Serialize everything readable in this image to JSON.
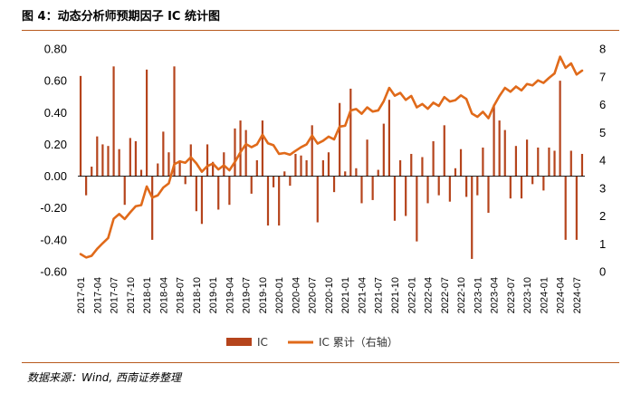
{
  "figure": {
    "title": "图 4：动态分析师预期因子 IC 统计图",
    "source": "数据来源：Wind, 西南证券整理"
  },
  "colors": {
    "bar": "#b5441c",
    "line": "#e06a1a",
    "rule": "#b85a1e"
  },
  "chart_data": {
    "type": "bar",
    "x": [
      "2017-01",
      "2017-02",
      "2017-03",
      "2017-04",
      "2017-05",
      "2017-06",
      "2017-07",
      "2017-08",
      "2017-09",
      "2017-10",
      "2017-11",
      "2017-12",
      "2018-01",
      "2018-02",
      "2018-03",
      "2018-04",
      "2018-05",
      "2018-06",
      "2018-07",
      "2018-08",
      "2018-09",
      "2018-10",
      "2018-11",
      "2018-12",
      "2019-01",
      "2019-02",
      "2019-03",
      "2019-04",
      "2019-05",
      "2019-06",
      "2019-07",
      "2019-08",
      "2019-09",
      "2019-10",
      "2019-11",
      "2019-12",
      "2020-01",
      "2020-02",
      "2020-03",
      "2020-04",
      "2020-05",
      "2020-06",
      "2020-07",
      "2020-08",
      "2020-09",
      "2020-10",
      "2020-11",
      "2020-12",
      "2021-01",
      "2021-02",
      "2021-03",
      "2021-04",
      "2021-05",
      "2021-06",
      "2021-07",
      "2021-08",
      "2021-09",
      "2021-10",
      "2021-11",
      "2021-12",
      "2022-01",
      "2022-02",
      "2022-03",
      "2022-04",
      "2022-05",
      "2022-06",
      "2022-07",
      "2022-08",
      "2022-09",
      "2022-10",
      "2022-11",
      "2022-12",
      "2023-01",
      "2023-02",
      "2023-03",
      "2023-04",
      "2023-05",
      "2023-06",
      "2023-07",
      "2023-08",
      "2023-09",
      "2023-10",
      "2023-11",
      "2023-12",
      "2024-01",
      "2024-02",
      "2024-03",
      "2024-04",
      "2024-05",
      "2024-06",
      "2024-07",
      "2024-08"
    ],
    "xtick_labels": [
      "2017-01",
      "2017-04",
      "2017-07",
      "2017-10",
      "2018-01",
      "2018-04",
      "2018-07",
      "2018-10",
      "2019-01",
      "2019-04",
      "2019-07",
      "2019-10",
      "2020-01",
      "2020-04",
      "2020-07",
      "2020-10",
      "2021-01",
      "2021-04",
      "2021-07",
      "2021-10",
      "2022-01",
      "2022-04",
      "2022-07",
      "2022-10",
      "2023-01",
      "2023-04",
      "2023-07",
      "2023-10",
      "2024-01",
      "2024-04",
      "2024-07"
    ],
    "series": [
      {
        "name": "IC",
        "type": "bar",
        "axis": "left",
        "values": [
          0.63,
          -0.12,
          0.06,
          0.25,
          0.2,
          0.19,
          0.69,
          0.17,
          -0.18,
          0.24,
          0.22,
          0.04,
          0.67,
          -0.4,
          0.08,
          0.28,
          0.15,
          0.69,
          0.1,
          -0.05,
          0.2,
          -0.22,
          -0.3,
          0.2,
          0.09,
          -0.21,
          0.15,
          -0.18,
          0.3,
          0.35,
          0.29,
          -0.11,
          0.1,
          0.35,
          -0.31,
          -0.07,
          -0.31,
          0.03,
          -0.06,
          0.14,
          0.13,
          0.1,
          0.32,
          -0.29,
          0.1,
          0.15,
          -0.1,
          0.46,
          0.03,
          0.55,
          0.05,
          -0.17,
          0.23,
          -0.15,
          0.04,
          0.33,
          0.48,
          -0.28,
          0.1,
          -0.25,
          0.14,
          -0.41,
          0.12,
          -0.17,
          0.22,
          -0.12,
          0.32,
          -0.16,
          0.05,
          0.17,
          -0.13,
          -0.52,
          -0.12,
          0.18,
          -0.23,
          0.45,
          0.35,
          0.29,
          -0.14,
          0.19,
          -0.14,
          0.23,
          -0.05,
          0.18,
          -0.09,
          0.18,
          0.16,
          0.6,
          -0.4,
          0.16,
          -0.4,
          0.14
        ]
      },
      {
        "name": "IC 累计（右轴）",
        "type": "line",
        "axis": "right",
        "values": [
          0.63,
          0.51,
          0.57,
          0.82,
          1.02,
          1.21,
          1.9,
          2.07,
          1.89,
          2.13,
          2.35,
          2.39,
          3.06,
          2.66,
          2.74,
          3.02,
          3.17,
          3.86,
          3.96,
          3.91,
          4.11,
          3.89,
          3.59,
          3.79,
          3.88,
          3.67,
          3.82,
          3.64,
          3.94,
          4.29,
          4.58,
          4.47,
          4.57,
          4.92,
          4.61,
          4.54,
          4.23,
          4.26,
          4.2,
          4.34,
          4.47,
          4.57,
          4.89,
          4.6,
          4.7,
          4.85,
          4.75,
          5.21,
          5.24,
          5.79,
          5.84,
          5.67,
          5.9,
          5.75,
          5.79,
          6.12,
          6.6,
          6.32,
          6.42,
          6.17,
          6.31,
          5.9,
          6.02,
          5.85,
          6.07,
          5.95,
          6.27,
          6.11,
          6.16,
          6.33,
          6.2,
          5.68,
          5.56,
          5.74,
          5.51,
          5.96,
          6.31,
          6.6,
          6.46,
          6.65,
          6.51,
          6.74,
          6.69,
          6.87,
          6.78,
          6.96,
          7.12,
          7.72,
          7.32,
          7.48,
          7.08,
          7.22
        ]
      }
    ],
    "axes": {
      "left": {
        "ylim": [
          -0.6,
          0.8
        ],
        "ticks": [
          "-0.60",
          "-0.40",
          "-0.20",
          "0.00",
          "0.20",
          "0.40",
          "0.60",
          "0.80"
        ]
      },
      "right": {
        "ylim": [
          0,
          8
        ],
        "ticks": [
          "0",
          "1",
          "2",
          "3",
          "4",
          "5",
          "6",
          "7",
          "8"
        ]
      }
    },
    "grid": false,
    "legend": {
      "position": "bottom-center",
      "items": [
        "IC",
        "IC 累计（右轴）"
      ]
    }
  }
}
